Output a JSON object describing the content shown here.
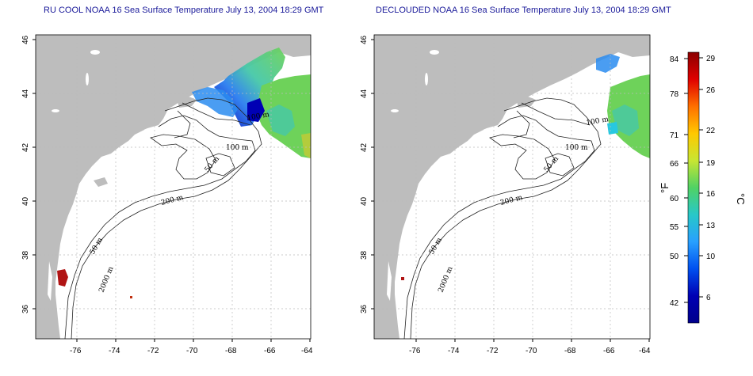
{
  "panels": [
    {
      "title": "RU COOL NOAA 16 Sea Surface Temperature July 13, 2004 18:29 GMT",
      "contour_labels": [
        "100 m",
        "50 m",
        "200 m",
        "50 m",
        "2000 m",
        "100 m"
      ]
    },
    {
      "title": "DECLOUDED NOAA 16 Sea Surface Temperature July 13, 2004 18:29 GMT",
      "contour_labels": [
        "100 m",
        "50 m",
        "200 m",
        "50 m",
        "2000 m",
        "100 m"
      ]
    }
  ],
  "map": {
    "lon_ticks": [
      "-76",
      "-74",
      "-72",
      "-70",
      "-68",
      "-66",
      "-64"
    ],
    "lat_ticks": [
      "36",
      "38",
      "40",
      "42",
      "44",
      "46"
    ],
    "land_color": "#bdbdbd",
    "water_color": "#ffffff",
    "grid": true
  },
  "colorbar": {
    "f_ticks": [
      "84",
      "78",
      "71",
      "66",
      "60",
      "55",
      "50",
      "42"
    ],
    "c_ticks": [
      "29",
      "26",
      "22",
      "19",
      "16",
      "13",
      "10",
      "6"
    ],
    "f_label": "°F",
    "c_label": "°C",
    "gradient": [
      "#8b0000",
      "#e00000",
      "#ff7000",
      "#ffc800",
      "#c8e632",
      "#50d264",
      "#28c8c8",
      "#28a0ff",
      "#0050f0",
      "#0000b4",
      "#00008b"
    ]
  }
}
